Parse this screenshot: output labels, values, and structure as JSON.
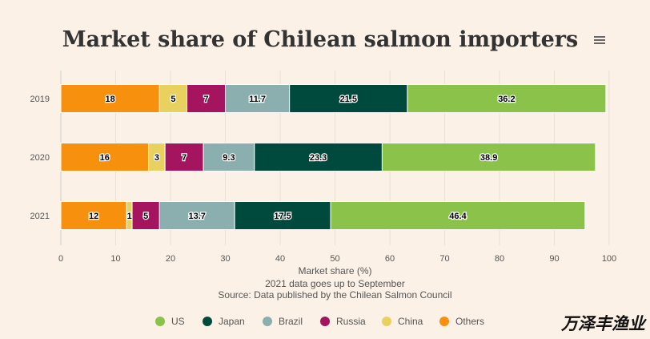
{
  "chart_data": {
    "type": "bar",
    "orientation": "horizontal",
    "stacked": true,
    "title": "Market share of Chilean salmon importers",
    "xlabel": "Market share (%)",
    "notes": [
      "2021 data goes up to September",
      "Source: Data published by the Chilean Salmon Council"
    ],
    "categories": [
      "2019",
      "2020",
      "2021"
    ],
    "xlim": [
      0,
      100
    ],
    "xticks": [
      0,
      10,
      20,
      30,
      40,
      50,
      60,
      70,
      80,
      90,
      100
    ],
    "grid": true,
    "legend_position": "bottom",
    "series": [
      {
        "name": "Others",
        "color": "#f7900d",
        "values": [
          18,
          16,
          12
        ]
      },
      {
        "name": "China",
        "color": "#e9d15f",
        "values": [
          5,
          3,
          1
        ]
      },
      {
        "name": "Russia",
        "color": "#a5145e",
        "values": [
          7,
          7,
          5
        ]
      },
      {
        "name": "Brazil",
        "color": "#8aafae",
        "values": [
          11.7,
          9.3,
          13.7
        ]
      },
      {
        "name": "Japan",
        "color": "#004a3d",
        "values": [
          21.5,
          23.3,
          17.5
        ]
      },
      {
        "name": "US",
        "color": "#8bc34a",
        "values": [
          36.2,
          38.9,
          46.4
        ]
      }
    ],
    "legend_order": [
      "US",
      "Japan",
      "Brazil",
      "Russia",
      "China",
      "Others"
    ]
  },
  "menu_icon": "hamburger-menu-icon",
  "watermark": "万泽丰渔业"
}
